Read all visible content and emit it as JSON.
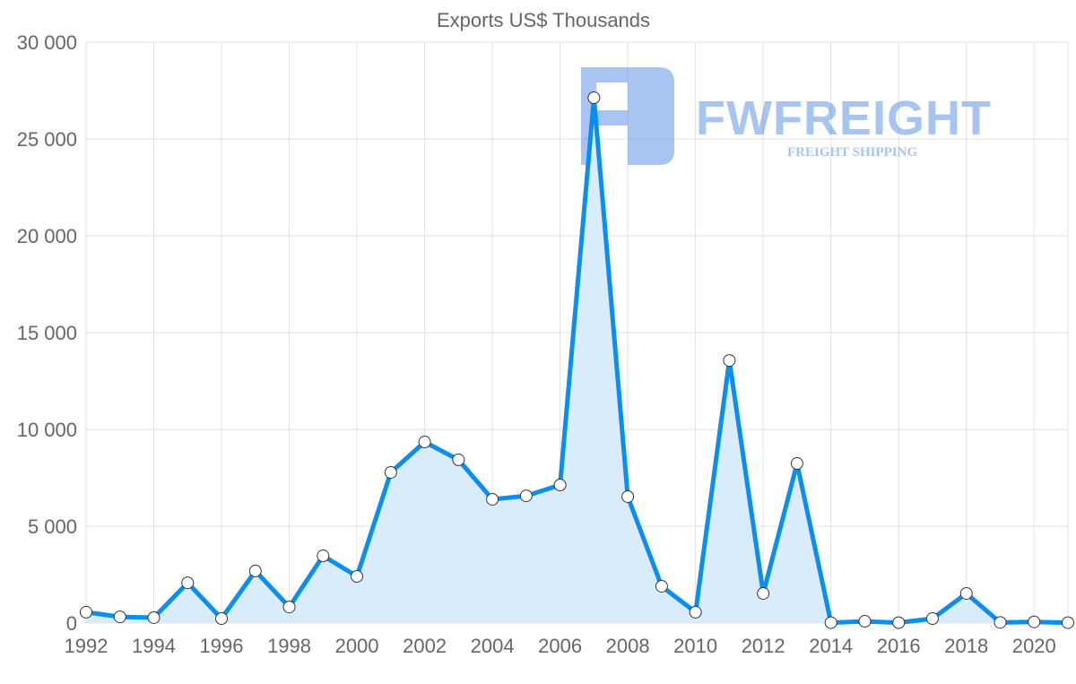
{
  "chart_data": {
    "type": "area",
    "title": "Exports US$ Thousands",
    "xlabel": "",
    "ylabel": "",
    "ylim": [
      0,
      30000
    ],
    "yticks": [
      0,
      5000,
      10000,
      15000,
      20000,
      25000,
      30000
    ],
    "ytick_labels": [
      "0",
      "5 000",
      "10 000",
      "15 000",
      "20 000",
      "25 000",
      "30 000"
    ],
    "xtick_labels": [
      "1992",
      "1994",
      "1996",
      "1998",
      "2000",
      "2002",
      "2004",
      "2006",
      "2008",
      "2010",
      "2012",
      "2014",
      "2016",
      "2018",
      "2020"
    ],
    "grid": true,
    "x": [
      1992,
      1993,
      1994,
      1995,
      1996,
      1997,
      1998,
      1999,
      2000,
      2001,
      2002,
      2003,
      2004,
      2005,
      2006,
      2007,
      2008,
      2009,
      2010,
      2011,
      2012,
      2013,
      2014,
      2015,
      2016,
      2017,
      2018,
      2019,
      2020,
      2021
    ],
    "series": [
      {
        "name": "Exports US$ Thousands",
        "values": [
          560,
          320,
          280,
          2080,
          230,
          2690,
          830,
          3470,
          2410,
          7780,
          9350,
          8430,
          6390,
          6570,
          7130,
          27130,
          6530,
          1900,
          560,
          13560,
          1530,
          8240,
          20,
          90,
          20,
          230,
          1530,
          30,
          60,
          20
        ],
        "color": "#0a8ef0",
        "fill": "#d9ecfc"
      }
    ]
  },
  "watermark": {
    "brand": "FWFREIGHT",
    "tagline": "FREIGHT SHIPPING"
  }
}
